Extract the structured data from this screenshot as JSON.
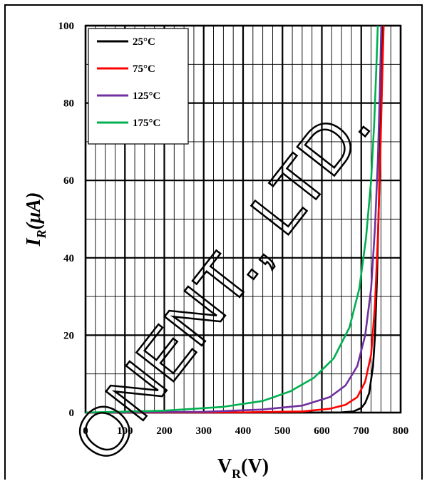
{
  "chart_data": {
    "type": "line",
    "title": "",
    "xlabel": {
      "main": "V",
      "sub": "R",
      "rest": "(V)"
    },
    "ylabel": {
      "main": "I",
      "sub": "R",
      "rest": "(μA)"
    },
    "xlim": [
      0,
      800
    ],
    "ylim": [
      0,
      100
    ],
    "x_ticks": [
      0,
      100,
      200,
      300,
      400,
      500,
      600,
      700,
      800
    ],
    "y_ticks": [
      0,
      20,
      40,
      60,
      80,
      100
    ],
    "grid": true,
    "legend_position": "top-left",
    "series": [
      {
        "name": "25°C",
        "color": "#000000",
        "points": [
          [
            0,
            0
          ],
          [
            500,
            0
          ],
          [
            650,
            0.05
          ],
          [
            680,
            0.3
          ],
          [
            700,
            1.2
          ],
          [
            710,
            2.5
          ],
          [
            720,
            5
          ],
          [
            730,
            12
          ],
          [
            735,
            20
          ],
          [
            740,
            35
          ],
          [
            745,
            55
          ],
          [
            750,
            80
          ],
          [
            755,
            100
          ]
        ]
      },
      {
        "name": "75°C",
        "color": "#ff0000",
        "points": [
          [
            0,
            0
          ],
          [
            400,
            0.05
          ],
          [
            550,
            0.3
          ],
          [
            620,
            1
          ],
          [
            660,
            2
          ],
          [
            690,
            4
          ],
          [
            710,
            8
          ],
          [
            725,
            15
          ],
          [
            735,
            28
          ],
          [
            742,
            45
          ],
          [
            748,
            65
          ],
          [
            753,
            85
          ],
          [
            757,
            100
          ]
        ]
      },
      {
        "name": "125°C",
        "color": "#7030a0",
        "points": [
          [
            0,
            0
          ],
          [
            300,
            0.2
          ],
          [
            450,
            0.8
          ],
          [
            550,
            1.8
          ],
          [
            620,
            4
          ],
          [
            660,
            7
          ],
          [
            690,
            12
          ],
          [
            710,
            20
          ],
          [
            725,
            32
          ],
          [
            735,
            48
          ],
          [
            742,
            65
          ],
          [
            747,
            82
          ],
          [
            751,
            100
          ]
        ]
      },
      {
        "name": "175°C",
        "color": "#00b050",
        "points": [
          [
            0,
            0
          ],
          [
            200,
            0.5
          ],
          [
            350,
            1.5
          ],
          [
            450,
            3
          ],
          [
            520,
            5.5
          ],
          [
            580,
            9
          ],
          [
            630,
            14
          ],
          [
            670,
            22
          ],
          [
            695,
            32
          ],
          [
            712,
            45
          ],
          [
            725,
            60
          ],
          [
            733,
            75
          ],
          [
            738,
            88
          ],
          [
            742,
            100
          ]
        ]
      }
    ]
  },
  "watermark": {
    "text": "ONENT., LTD."
  }
}
